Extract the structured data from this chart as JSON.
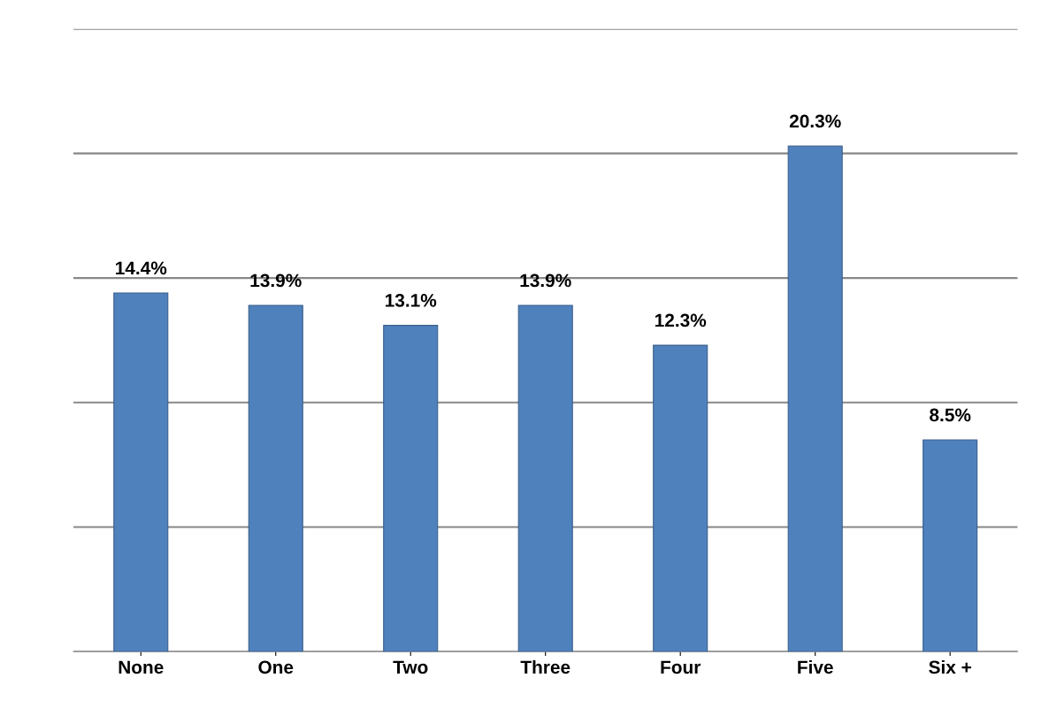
{
  "chart_data": {
    "type": "bar",
    "categories": [
      "None",
      "One",
      "Two",
      "Three",
      "Four",
      "Five",
      "Six +"
    ],
    "values": [
      14.4,
      13.9,
      13.1,
      13.9,
      12.3,
      20.3,
      8.5
    ],
    "value_labels": [
      "14.4%",
      "13.9%",
      "13.1%",
      "13.9%",
      "12.3%",
      "20.3%",
      "8.5%"
    ],
    "color": "#4f81bd",
    "ylim": [
      0,
      25
    ],
    "yticks": [
      {
        "value": 0,
        "label": null
      },
      {
        "value": 5,
        "label": null
      },
      {
        "value": 10,
        "label": null
      },
      {
        "value": 15,
        "label": null
      },
      {
        "value": 20,
        "label": null
      },
      {
        "value": 25,
        "label": null
      }
    ],
    "grid": "y",
    "tick_labels": "x"
  }
}
